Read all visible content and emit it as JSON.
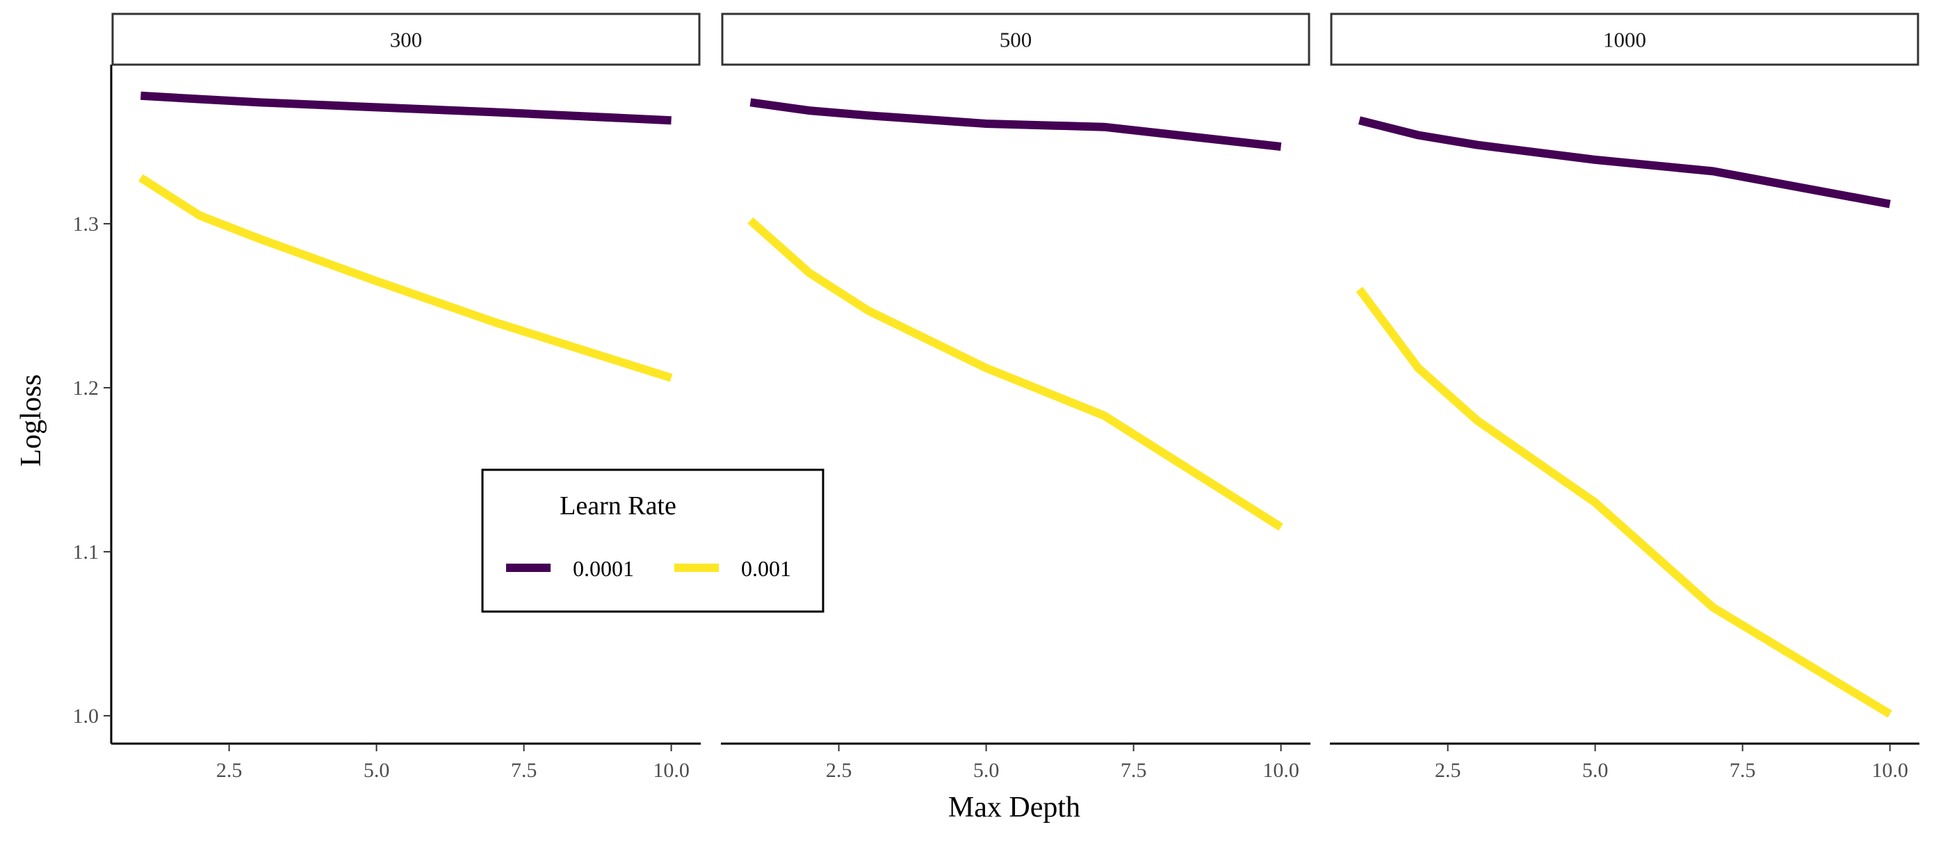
{
  "chart_data": {
    "type": "line",
    "xlabel": "Max Depth",
    "ylabel": "Logloss",
    "xlim": [
      0.5,
      10.5
    ],
    "ylim": [
      0.983,
      1.397
    ],
    "x_ticks": [
      2.5,
      5.0,
      7.5,
      10.0
    ],
    "x_tick_labels": [
      "2.5",
      "5.0",
      "7.5",
      "10.0"
    ],
    "y_ticks": [
      1.0,
      1.1,
      1.2,
      1.3
    ],
    "y_tick_labels": [
      "1.0",
      "1.1",
      "1.2",
      "1.3"
    ],
    "legend": {
      "title": "Learn Rate",
      "placement": "inside-left-panel, bottom-right",
      "entries": [
        {
          "label": "0.0001",
          "color": "#440154"
        },
        {
          "label": "0.001",
          "color": "#FDE725"
        }
      ]
    },
    "panels": [
      {
        "label": "300",
        "series": [
          {
            "name": "0.0001",
            "color": "#440154",
            "x": [
              1,
              2,
              3,
              5,
              7,
              10
            ],
            "y": [
              1.378,
              1.376,
              1.374,
              1.371,
              1.368,
              1.363
            ]
          },
          {
            "name": "0.001",
            "color": "#FDE725",
            "x": [
              1,
              2,
              3,
              5,
              7,
              10
            ],
            "y": [
              1.328,
              1.305,
              1.291,
              1.265,
              1.24,
              1.206
            ]
          }
        ]
      },
      {
        "label": "500",
        "series": [
          {
            "name": "0.0001",
            "color": "#440154",
            "x": [
              1,
              2,
              3,
              5,
              7,
              10
            ],
            "y": [
              1.374,
              1.369,
              1.366,
              1.361,
              1.359,
              1.347
            ]
          },
          {
            "name": "0.001",
            "color": "#FDE725",
            "x": [
              1,
              2,
              3,
              5,
              7,
              10
            ],
            "y": [
              1.302,
              1.27,
              1.247,
              1.212,
              1.183,
              1.115
            ]
          }
        ]
      },
      {
        "label": "1000",
        "series": [
          {
            "name": "0.0001",
            "color": "#440154",
            "x": [
              1,
              2,
              3,
              5,
              7,
              10
            ],
            "y": [
              1.363,
              1.354,
              1.348,
              1.339,
              1.332,
              1.312
            ]
          },
          {
            "name": "0.001",
            "color": "#FDE725",
            "x": [
              1,
              2,
              3,
              5,
              7,
              10
            ],
            "y": [
              1.26,
              1.212,
              1.18,
              1.13,
              1.066,
              1.001
            ]
          }
        ]
      }
    ]
  }
}
